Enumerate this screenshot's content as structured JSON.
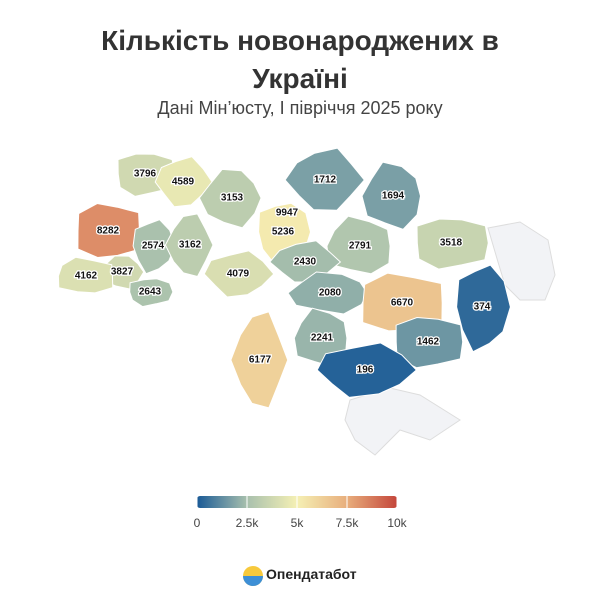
{
  "chart_data": {
    "type": "choropleth",
    "title": "Кількість новонароджених в Україні",
    "subtitle": "Дані Мін’юсту, І півріччя 2025 року",
    "values": [
      3796,
      4589,
      3153,
      9947,
      5236,
      1712,
      1694,
      8282,
      2574,
      3162,
      2791,
      3518,
      4079,
      3827,
      4162,
      2643,
      2430,
      2080,
      6670,
      374,
      6177,
      2241,
      1462,
      196
    ],
    "clim": [
      0,
      10000
    ],
    "colors": [
      "#1a5a96",
      "#a8c0ad",
      "#f5f0b4",
      "#e8ae7c",
      "#c4463b"
    ],
    "cticks": [
      0,
      {
        "value": 2500,
        "label": "2.5k"
      },
      {
        "value": 5000,
        "label": "5k"
      },
      {
        "value": 7500,
        "label": "7.5k"
      },
      {
        "value": 10000,
        "label": "10k"
      }
    ],
    "brand": "Опендатабот"
  }
}
